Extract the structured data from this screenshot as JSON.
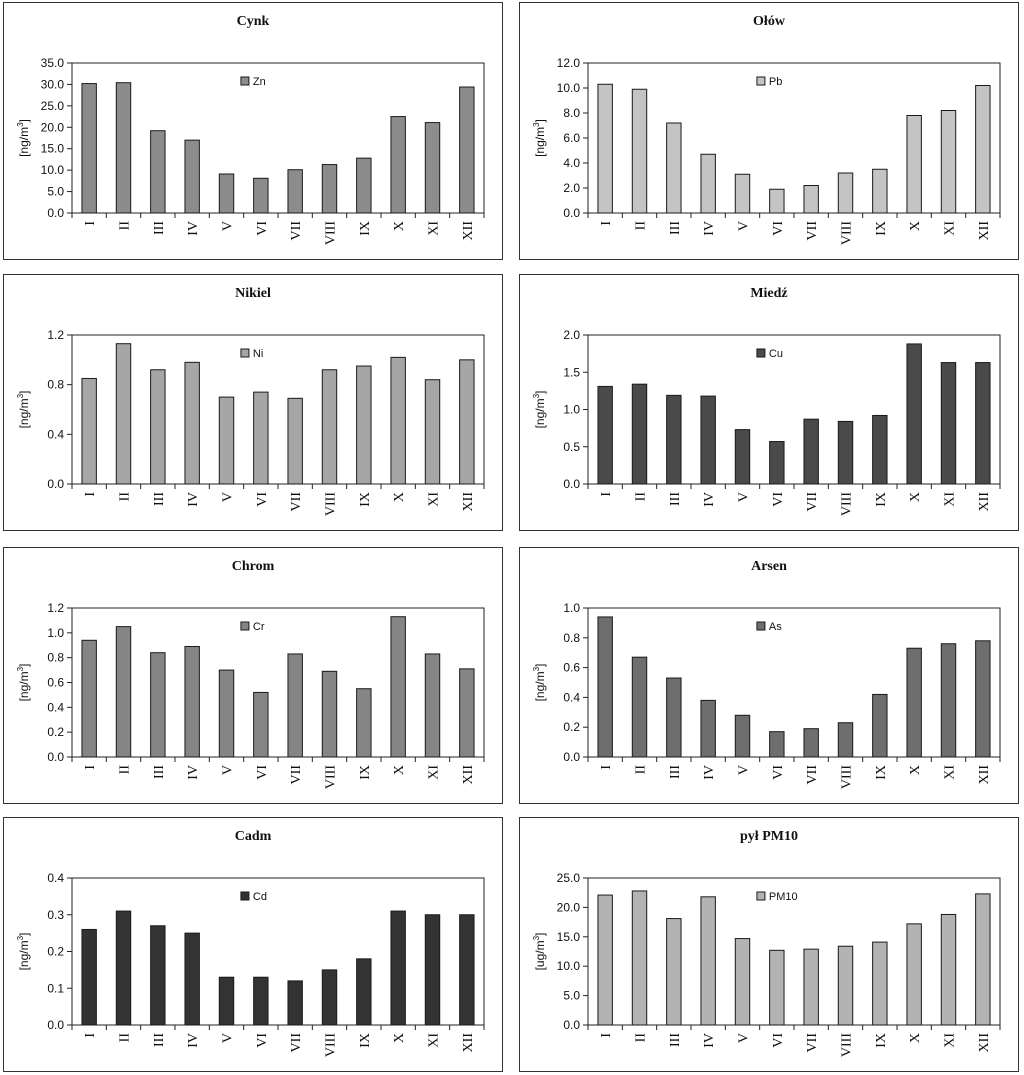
{
  "chart_data": [
    {
      "type": "bar",
      "title": "Cynk",
      "ylabel": "[ng/m3]",
      "ylabel_main": "[ng/m",
      "ylabel_sup": "3",
      "ylabel_tail": "]",
      "categories": [
        "I",
        "II",
        "III",
        "IV",
        "V",
        "VI",
        "VII",
        "VIII",
        "IX",
        "X",
        "XI",
        "XII"
      ],
      "series": [
        {
          "name": "Zn",
          "values": [
            30.2,
            30.4,
            19.2,
            17.0,
            9.1,
            8.1,
            10.1,
            11.3,
            12.8,
            22.5,
            21.1,
            29.4
          ]
        }
      ],
      "ylim": [
        0,
        35
      ],
      "yticks": [
        "0.0",
        "5.0",
        "10.0",
        "15.0",
        "20.0",
        "25.0",
        "30.0",
        "35.0"
      ],
      "color": "#8c8c8c",
      "legend": "top-center",
      "grid": false
    },
    {
      "type": "bar",
      "title": "Ołów",
      "ylabel": "[ng/m3]",
      "ylabel_main": "[ng/m",
      "ylabel_sup": "3",
      "ylabel_tail": "]",
      "categories": [
        "I",
        "II",
        "III",
        "IV",
        "V",
        "VI",
        "VII",
        "VIII",
        "IX",
        "X",
        "XI",
        "XII"
      ],
      "series": [
        {
          "name": "Pb",
          "values": [
            10.3,
            9.9,
            7.2,
            4.7,
            3.1,
            1.9,
            2.2,
            3.2,
            3.5,
            7.8,
            8.2,
            10.2
          ]
        }
      ],
      "ylim": [
        0,
        12
      ],
      "yticks": [
        "0.0",
        "2.0",
        "4.0",
        "6.0",
        "8.0",
        "10.0",
        "12.0"
      ],
      "color": "#c4c4c4",
      "legend": "top-center",
      "grid": false
    },
    {
      "type": "bar",
      "title": "Nikiel",
      "ylabel": "[ng/m3]",
      "ylabel_main": "[ng/m",
      "ylabel_sup": "3",
      "ylabel_tail": "]",
      "categories": [
        "I",
        "II",
        "III",
        "IV",
        "V",
        "VI",
        "VII",
        "VIII",
        "IX",
        "X",
        "XI",
        "XII"
      ],
      "series": [
        {
          "name": "Ni",
          "values": [
            0.85,
            1.13,
            0.92,
            0.98,
            0.7,
            0.74,
            0.69,
            0.92,
            0.95,
            1.02,
            0.84,
            1.0
          ]
        }
      ],
      "ylim": [
        0,
        1.2
      ],
      "yticks": [
        "0.0",
        "0.4",
        "0.8",
        "1.2"
      ],
      "color": "#a6a6a6",
      "legend": "top-center",
      "grid": false
    },
    {
      "type": "bar",
      "title": "Miedź",
      "ylabel": "[ng/m3]",
      "ylabel_main": "[ng/m",
      "ylabel_sup": "3",
      "ylabel_tail": "]",
      "categories": [
        "I",
        "II",
        "III",
        "IV",
        "V",
        "VI",
        "VII",
        "VIII",
        "IX",
        "X",
        "XI",
        "XII"
      ],
      "series": [
        {
          "name": "Cu",
          "values": [
            1.31,
            1.34,
            1.19,
            1.18,
            0.73,
            0.57,
            0.87,
            0.84,
            0.92,
            1.88,
            1.63,
            1.63
          ]
        }
      ],
      "ylim": [
        0,
        2.0
      ],
      "yticks": [
        "0.0",
        "0.5",
        "1.0",
        "1.5",
        "2.0"
      ],
      "color": "#4a4a4a",
      "legend": "top-center",
      "grid": false
    },
    {
      "type": "bar",
      "title": "Chrom",
      "ylabel": "[ng/m3]",
      "ylabel_main": "[ng/m",
      "ylabel_sup": "3",
      "ylabel_tail": "]",
      "categories": [
        "I",
        "II",
        "III",
        "IV",
        "V",
        "VI",
        "VII",
        "VIII",
        "IX",
        "X",
        "XI",
        "XII"
      ],
      "series": [
        {
          "name": "Cr",
          "values": [
            0.94,
            1.05,
            0.84,
            0.89,
            0.7,
            0.52,
            0.83,
            0.69,
            0.55,
            1.13,
            0.83,
            0.71
          ]
        }
      ],
      "ylim": [
        0,
        1.2
      ],
      "yticks": [
        "0.0",
        "0.2",
        "0.4",
        "0.6",
        "0.8",
        "1.0",
        "1.2"
      ],
      "color": "#858585",
      "legend": "top-center",
      "grid": false
    },
    {
      "type": "bar",
      "title": "Arsen",
      "ylabel": "[ng/m3]",
      "ylabel_main": "[ng/m",
      "ylabel_sup": "3",
      "ylabel_tail": "]",
      "categories": [
        "I",
        "II",
        "III",
        "IV",
        "V",
        "VI",
        "VII",
        "VIII",
        "IX",
        "X",
        "XI",
        "XII"
      ],
      "series": [
        {
          "name": "As",
          "values": [
            0.94,
            0.67,
            0.53,
            0.38,
            0.28,
            0.17,
            0.19,
            0.23,
            0.42,
            0.73,
            0.76,
            0.78
          ]
        }
      ],
      "ylim": [
        0,
        1.0
      ],
      "yticks": [
        "0.0",
        "0.2",
        "0.4",
        "0.6",
        "0.8",
        "1.0"
      ],
      "color": "#6e6e6e",
      "legend": "top-center",
      "grid": false
    },
    {
      "type": "bar",
      "title": "Cadm",
      "ylabel": "[ng/m3]",
      "ylabel_main": "[ng/m",
      "ylabel_sup": "3",
      "ylabel_tail": "]",
      "categories": [
        "I",
        "II",
        "III",
        "IV",
        "V",
        "VI",
        "VII",
        "VIII",
        "IX",
        "X",
        "XI",
        "XII"
      ],
      "series": [
        {
          "name": "Cd",
          "values": [
            0.26,
            0.31,
            0.27,
            0.25,
            0.13,
            0.13,
            0.12,
            0.15,
            0.18,
            0.31,
            0.3,
            0.3
          ]
        }
      ],
      "ylim": [
        0,
        0.4
      ],
      "yticks": [
        "0.0",
        "0.1",
        "0.2",
        "0.3",
        "0.4"
      ],
      "color": "#333333",
      "legend": "top-center",
      "grid": false
    },
    {
      "type": "bar",
      "title": "pył PM10",
      "ylabel": "[ug/m3]",
      "ylabel_main": "[ug/m",
      "ylabel_sup": "3",
      "ylabel_tail": "]",
      "categories": [
        "I",
        "II",
        "III",
        "IV",
        "V",
        "VI",
        "VII",
        "VIII",
        "IX",
        "X",
        "XI",
        "XII"
      ],
      "series": [
        {
          "name": "PM10",
          "values": [
            22.1,
            22.8,
            18.1,
            21.8,
            14.7,
            12.7,
            12.9,
            13.4,
            14.1,
            17.2,
            18.8,
            22.3
          ]
        }
      ],
      "ylim": [
        0,
        25
      ],
      "yticks": [
        "0.0",
        "5.0",
        "10.0",
        "15.0",
        "20.0",
        "25.0"
      ],
      "color": "#b3b3b3",
      "legend": "top-center",
      "grid": false
    }
  ]
}
